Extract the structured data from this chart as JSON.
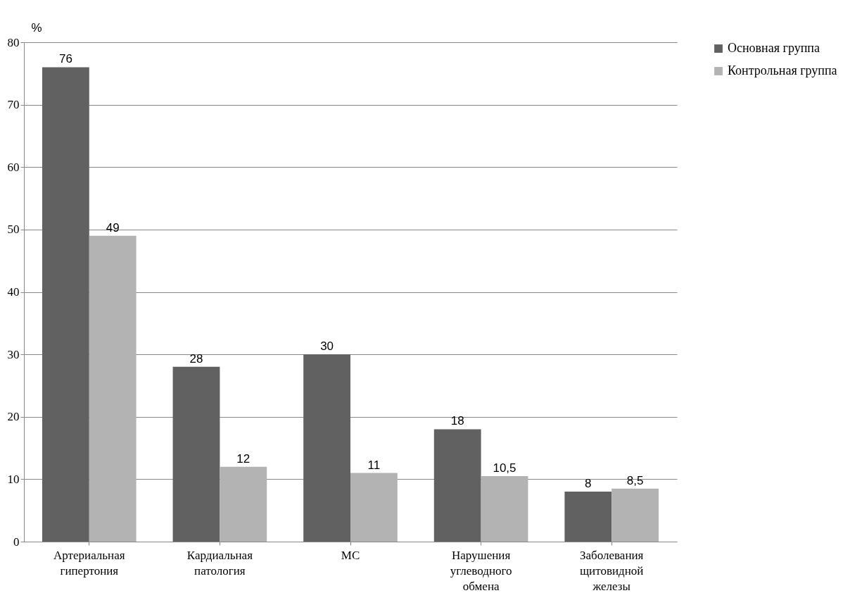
{
  "chart_data": {
    "type": "bar",
    "ylabel": "%",
    "categories": [
      "Артериальная гипертония",
      "Кардиальная патология",
      "МС",
      "Нарушения углеводного обмена",
      "Заболевания щитовидной железы"
    ],
    "series": [
      {
        "name": "Основная группа",
        "color": "#616161",
        "values": [
          76,
          28,
          30,
          18,
          8
        ],
        "value_labels": [
          "76",
          "28",
          "30",
          "18",
          "8"
        ]
      },
      {
        "name": "Контрольная группа",
        "color": "#b3b3b3",
        "values": [
          49,
          12,
          11,
          10.5,
          8.5
        ],
        "value_labels": [
          "49",
          "12",
          "11",
          "10,5",
          "8,5"
        ]
      }
    ],
    "ylim": [
      0,
      80
    ],
    "yticks": [
      0,
      10,
      20,
      30,
      40,
      50,
      60,
      70,
      80
    ],
    "grid": "y",
    "legend": "right"
  }
}
